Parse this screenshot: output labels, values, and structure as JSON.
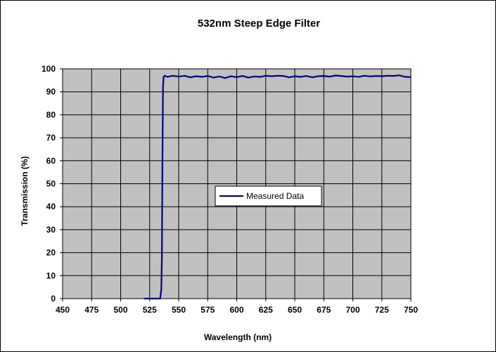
{
  "chart_data": {
    "type": "line",
    "title": "532nm Steep Edge Filter",
    "xlabel": "Wavelength (nm)",
    "ylabel": "Transmission (%)",
    "xlim": [
      450,
      750
    ],
    "ylim": [
      0,
      100
    ],
    "x_ticks": [
      450,
      475,
      500,
      525,
      550,
      575,
      600,
      625,
      650,
      675,
      700,
      725,
      750
    ],
    "y_ticks": [
      0,
      10,
      20,
      30,
      40,
      50,
      60,
      70,
      80,
      90,
      100
    ],
    "grid": true,
    "legend": "center-right",
    "colors": {
      "line": "#000080",
      "plot_bg": "#c0c0c0"
    },
    "series": [
      {
        "name": "Measured Data",
        "x": [
          520,
          525,
          530,
          534,
          535,
          535.5,
          536,
          536.5,
          537,
          538,
          540,
          545,
          550,
          555,
          560,
          565,
          570,
          575,
          580,
          585,
          590,
          595,
          600,
          605,
          610,
          615,
          620,
          625,
          630,
          635,
          640,
          645,
          650,
          655,
          660,
          665,
          670,
          675,
          680,
          685,
          690,
          695,
          700,
          705,
          710,
          715,
          720,
          725,
          730,
          735,
          740,
          745,
          750
        ],
        "y": [
          0,
          0,
          0,
          0,
          4,
          18,
          60,
          92,
          96.5,
          97,
          96.5,
          97,
          96.6,
          97,
          96.3,
          96.8,
          96.5,
          96.9,
          96.2,
          96.7,
          96,
          96.8,
          96.4,
          96.9,
          96.2,
          96.7,
          96.5,
          97,
          96.8,
          97,
          96.9,
          96.3,
          96.8,
          96.5,
          96.9,
          96.3,
          96.8,
          96.9,
          96.6,
          97.1,
          96.9,
          96.6,
          96.8,
          96.5,
          97,
          96.7,
          96.9,
          96.8,
          97,
          96.9,
          97.2,
          96.5,
          96.4
        ]
      }
    ]
  }
}
